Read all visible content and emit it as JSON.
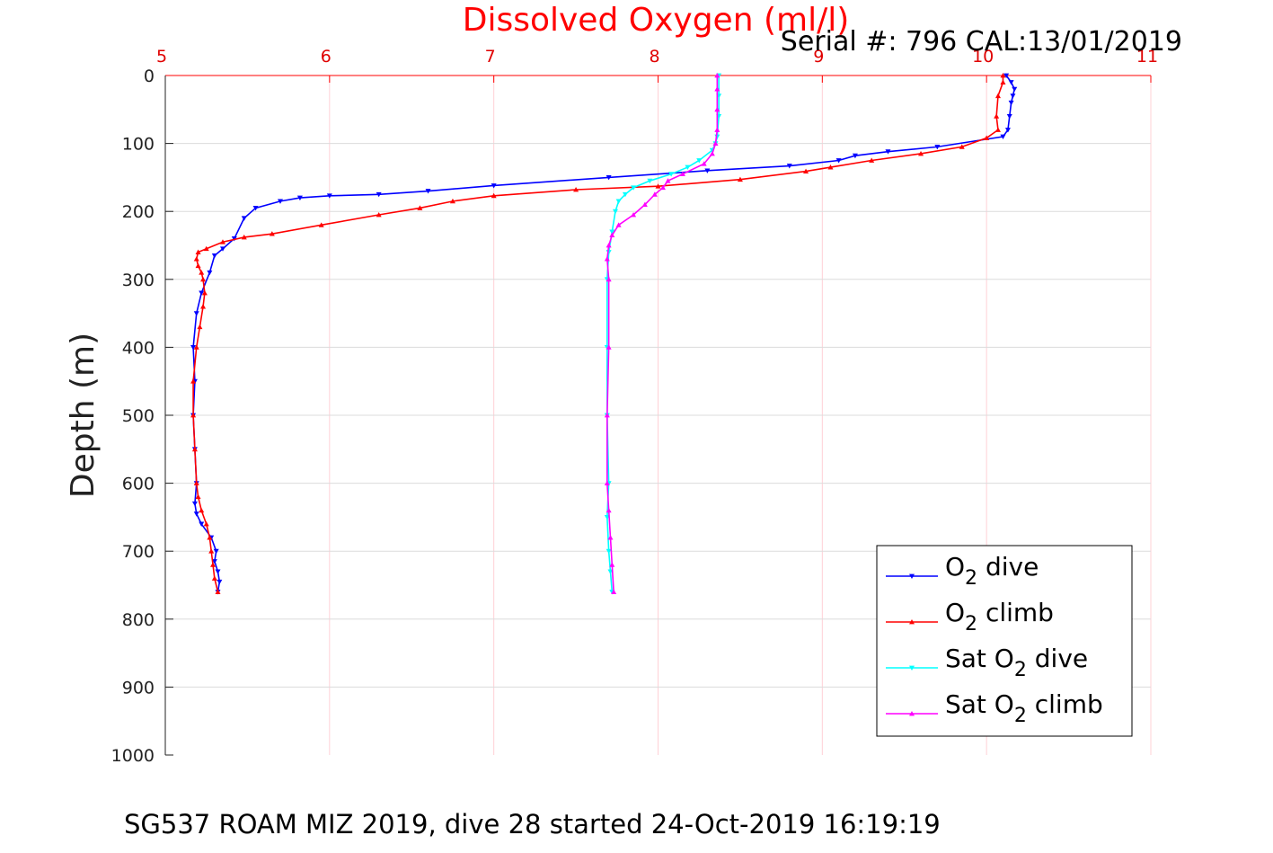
{
  "chart_data": {
    "type": "line",
    "title": "Dissolved Oxygen (ml/l)",
    "subtitle": "Serial #: 796  CAL:13/01/2019",
    "footer": "SG537 ROAM MIZ 2019, dive 28 started 24-Oct-2019 16:19:19",
    "xlabel": "Dissolved Oxygen (ml/l)",
    "ylabel": "Depth (m)",
    "xlim": [
      5,
      11
    ],
    "ylim": [
      0,
      1000
    ],
    "y_reversed": true,
    "x_axis_position": "top",
    "grid": true,
    "legend_position": "bottom-right",
    "x_ticks": [
      "5",
      "6",
      "7",
      "8",
      "9",
      "10",
      "11"
    ],
    "y_ticks": [
      "0",
      "100",
      "200",
      "300",
      "400",
      "500",
      "600",
      "700",
      "800",
      "900",
      "1000"
    ],
    "colors": {
      "title": "#ff0000",
      "x_ticks": "#ff0000",
      "grid": "#e6e6e6"
    },
    "series": [
      {
        "name": "O2 dive",
        "legend_main": "O",
        "legend_sub": "2",
        "legend_rest": " dive",
        "color": "#0000ff",
        "marker": "triangle-down",
        "x": [
          10.12,
          10.15,
          10.17,
          10.16,
          10.15,
          10.14,
          10.13,
          10.1,
          9.7,
          9.4,
          9.2,
          9.1,
          8.8,
          8.3,
          7.7,
          7.0,
          6.6,
          6.3,
          6.0,
          5.82,
          5.7,
          5.55,
          5.48,
          5.42,
          5.35,
          5.3,
          5.27,
          5.22,
          5.19,
          5.17,
          5.18,
          5.17,
          5.18,
          5.19,
          5.18,
          5.19,
          5.22,
          5.28,
          5.31,
          5.3,
          5.32,
          5.33,
          5.32
        ],
        "y": [
          0,
          10,
          20,
          30,
          40,
          60,
          80,
          90,
          105,
          112,
          118,
          125,
          133,
          140,
          150,
          162,
          170,
          175,
          177,
          180,
          185,
          195,
          210,
          240,
          255,
          265,
          290,
          320,
          350,
          400,
          450,
          500,
          550,
          600,
          630,
          645,
          660,
          680,
          700,
          715,
          730,
          745,
          760
        ]
      },
      {
        "name": "O2 climb",
        "legend_main": "O",
        "legend_sub": "2",
        "legend_rest": " climb",
        "color": "#ff0000",
        "marker": "triangle-up",
        "x": [
          5.32,
          5.3,
          5.29,
          5.28,
          5.27,
          5.25,
          5.22,
          5.2,
          5.19,
          5.18,
          5.17,
          5.17,
          5.19,
          5.21,
          5.23,
          5.24,
          5.23,
          5.22,
          5.2,
          5.19,
          5.2,
          5.25,
          5.35,
          5.48,
          5.65,
          5.95,
          6.3,
          6.55,
          6.75,
          7.0,
          7.5,
          8.0,
          8.5,
          8.9,
          9.05,
          9.3,
          9.6,
          9.85,
          10.0,
          10.07,
          10.06,
          10.07,
          10.1,
          10.1
        ],
        "y": [
          760,
          740,
          720,
          700,
          680,
          660,
          640,
          620,
          600,
          550,
          500,
          450,
          400,
          370,
          340,
          320,
          300,
          290,
          280,
          270,
          260,
          255,
          245,
          238,
          233,
          220,
          205,
          195,
          185,
          177,
          168,
          163,
          153,
          141,
          135,
          125,
          115,
          105,
          92,
          80,
          60,
          30,
          10,
          0
        ]
      },
      {
        "name": "Sat O2 dive",
        "legend_main": "Sat O",
        "legend_sub": "2",
        "legend_rest": " dive",
        "color": "#00ffff",
        "marker": "triangle-down",
        "x": [
          8.37,
          8.37,
          8.37,
          8.36,
          8.35,
          8.33,
          8.25,
          8.18,
          8.08,
          7.95,
          7.85,
          7.8,
          7.76,
          7.74,
          7.72,
          7.7,
          7.69,
          7.69,
          7.69,
          7.7,
          7.69,
          7.7,
          7.71,
          7.72
        ],
        "y": [
          0,
          30,
          60,
          90,
          100,
          110,
          125,
          135,
          145,
          155,
          165,
          175,
          185,
          200,
          230,
          260,
          300,
          400,
          500,
          600,
          650,
          700,
          730,
          760
        ]
      },
      {
        "name": "Sat O2 climb",
        "legend_main": "Sat O",
        "legend_sub": "2",
        "legend_rest": " climb",
        "color": "#ff00ff",
        "marker": "triangle-up",
        "x": [
          7.73,
          7.72,
          7.71,
          7.7,
          7.69,
          7.69,
          7.7,
          7.7,
          7.69,
          7.7,
          7.72,
          7.76,
          7.85,
          7.92,
          7.98,
          8.03,
          8.06,
          8.15,
          8.28,
          8.33,
          8.35,
          8.36,
          8.36,
          8.36,
          8.36
        ],
        "y": [
          760,
          720,
          680,
          640,
          600,
          500,
          400,
          300,
          270,
          250,
          235,
          220,
          205,
          190,
          175,
          165,
          155,
          145,
          130,
          115,
          100,
          80,
          50,
          20,
          0
        ]
      }
    ]
  }
}
